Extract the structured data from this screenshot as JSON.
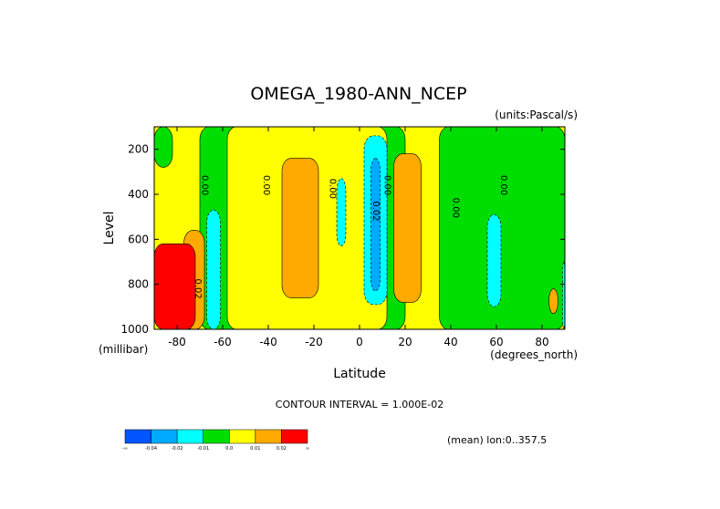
{
  "chart_data": {
    "type": "contour",
    "title": "OMEGA_1980-ANN_NCEP",
    "units_label": "(units:Pascal/s)",
    "xlabel": "Latitude",
    "ylabel": "Level",
    "x_unit_label": "(degrees_north)",
    "y_unit_label": "(millibar)",
    "xlim": [
      -90,
      90
    ],
    "ylim": [
      1000,
      100
    ],
    "y_reversed": true,
    "x_ticks": [
      -80,
      -60,
      -40,
      -20,
      0,
      20,
      40,
      60,
      80
    ],
    "x_tick_labels": [
      "-80",
      "-60",
      "-40",
      "-20",
      "0",
      "20",
      "40",
      "60",
      "80"
    ],
    "y_ticks": [
      200,
      400,
      600,
      800,
      1000
    ],
    "y_tick_labels": [
      "200",
      "400",
      "600",
      "800",
      "1000"
    ],
    "contour_interval_text": "CONTOUR INTERVAL = 1.000E-02",
    "mean_text": "(mean) lon:0..357.5",
    "levels": [
      -0.04,
      -0.02,
      -0.01,
      0.0,
      0.01,
      0.02
    ],
    "colorbar": {
      "colors": [
        "#0055ff",
        "#00aaff",
        "#00ffff",
        "#00dd00",
        "#ffff00",
        "#ffaa00",
        "#ff0000"
      ],
      "labels": [
        "-∞",
        "-0.04",
        "-0.02",
        "-0.01",
        "0.0",
        "0.01",
        "0.02",
        "∞"
      ]
    },
    "contour_labels": [
      {
        "text": "0.00",
        "lat": -69,
        "lev": 360
      },
      {
        "text": "0.00",
        "lat": -42,
        "lev": 360
      },
      {
        "text": "0.00",
        "lat": -13,
        "lev": 375
      },
      {
        "text": "0.00",
        "lat": 11,
        "lev": 360
      },
      {
        "text": "0.02",
        "lat": 6,
        "lev": 475
      },
      {
        "text": "0.00",
        "lat": 41,
        "lev": 460
      },
      {
        "text": "0.00",
        "lat": 62,
        "lev": 360
      },
      {
        "text": "0.02",
        "lat": -72,
        "lev": 820
      }
    ],
    "regions": [
      {
        "band": "0.00 to 0.01",
        "color_index": 4,
        "lat_range": [
          -90,
          90
        ],
        "lev_range": [
          100,
          1000
        ]
      },
      {
        "band": "-0.01 to 0.00",
        "color_index": 3,
        "lat_range": [
          -70,
          20
        ],
        "lev_range": [
          100,
          1000
        ]
      },
      {
        "band": "-0.01 to 0.00",
        "color_index": 3,
        "lat_range": [
          -90,
          -82
        ],
        "lev_range": [
          100,
          280
        ]
      },
      {
        "band": "-0.01 to 0.00",
        "color_index": 3,
        "lat_range": [
          35,
          90
        ],
        "lev_range": [
          100,
          1000
        ]
      },
      {
        "band": "0.00 to 0.01",
        "color_index": 4,
        "lat_range": [
          -58,
          12
        ],
        "lev_range": [
          100,
          1000
        ]
      },
      {
        "band": "0.01 to 0.02",
        "color_index": 5,
        "lat_range": [
          -34,
          -18
        ],
        "lev_range": [
          240,
          860
        ]
      },
      {
        "band": "0.01 to 0.02",
        "color_index": 5,
        "lat_range": [
          15,
          27
        ],
        "lev_range": [
          220,
          880
        ]
      },
      {
        "band": "0.01 to 0.02",
        "color_index": 5,
        "lat_range": [
          -77,
          -68
        ],
        "lev_range": [
          560,
          1000
        ]
      },
      {
        "band": "0.01 to 0.02",
        "color_index": 5,
        "lat_range": [
          83,
          87
        ],
        "lev_range": [
          820,
          930
        ]
      },
      {
        "band": "-0.02 to -0.01",
        "color_index": 2,
        "lat_range": [
          -67,
          -61
        ],
        "lev_range": [
          470,
          1000
        ]
      },
      {
        "band": "-0.02 to -0.01",
        "color_index": 2,
        "lat_range": [
          -10,
          -6
        ],
        "lev_range": [
          330,
          630
        ]
      },
      {
        "band": "-0.02 to -0.01",
        "color_index": 2,
        "lat_range": [
          2,
          12
        ],
        "lev_range": [
          140,
          890
        ]
      },
      {
        "band": "-0.04 to -0.02",
        "color_index": 1,
        "lat_range": [
          5,
          9
        ],
        "lev_range": [
          240,
          830
        ]
      },
      {
        "band": "-0.02 to -0.01",
        "color_index": 2,
        "lat_range": [
          56,
          62
        ],
        "lev_range": [
          490,
          900
        ]
      },
      {
        "band": "-0.02 to -0.01",
        "color_index": 2,
        "lat_range": [
          89,
          90
        ],
        "lev_range": [
          700,
          1000
        ]
      },
      {
        "band": "> 0.02",
        "color_index": 6,
        "lat_range": [
          -90,
          -72
        ],
        "lev_range": [
          620,
          1000
        ]
      }
    ]
  }
}
